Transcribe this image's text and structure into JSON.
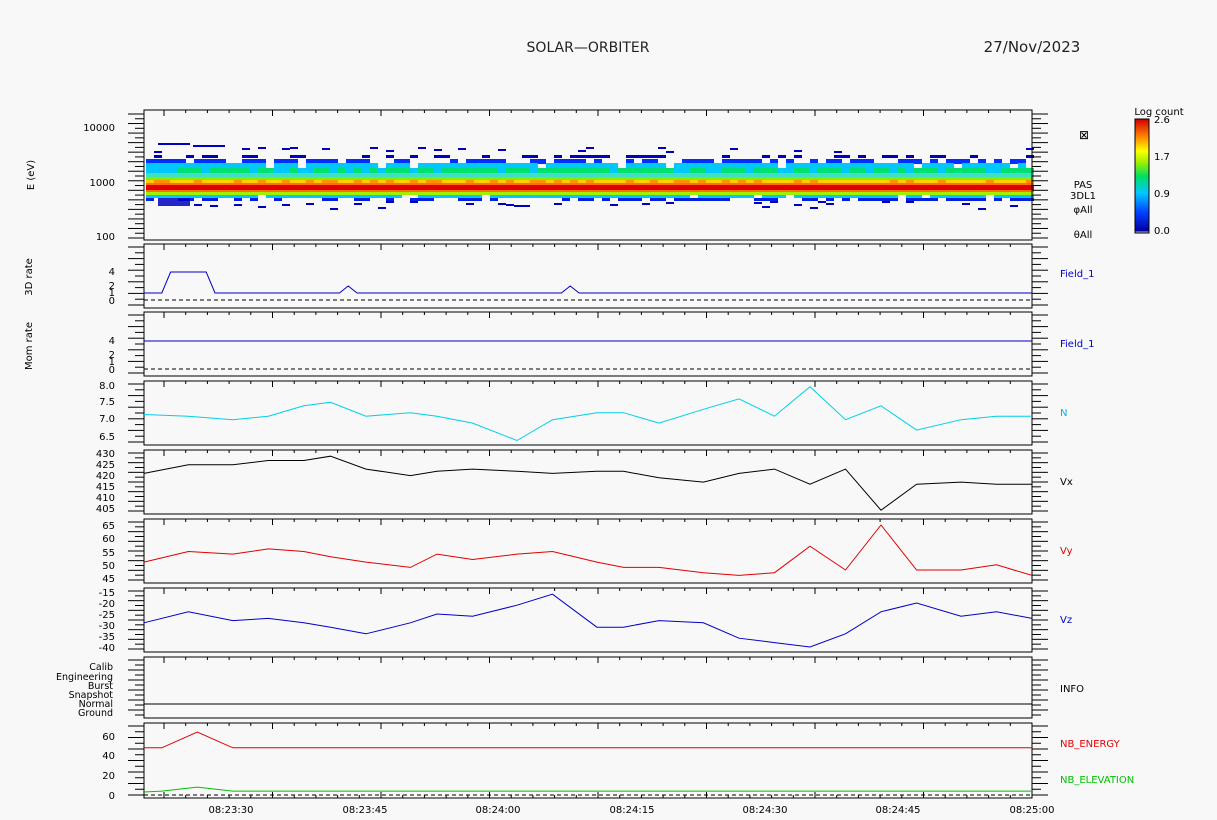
{
  "header": {
    "title": "SOLAR—ORBITER",
    "date": "27/Nov/2023"
  },
  "colorbar": {
    "title": "Log count",
    "ticks": [
      "2.6",
      "1.7",
      "0.9",
      "0.0"
    ]
  },
  "x_ticks": [
    "08:23:30",
    "08:23:45",
    "08:24:00",
    "08:24:15",
    "08:24:30",
    "08:24:45",
    "08:25:00"
  ],
  "chart_data": [
    {
      "id": "energy",
      "type": "heatmap",
      "ylabel": "E (eV)",
      "yticks": [
        "10000",
        "1000",
        "100"
      ],
      "right_labels": [
        "PAS",
        "3DL1",
        "φAll",
        "θAll"
      ],
      "note": "Energy spectrogram; peak counts near 1000 eV"
    },
    {
      "id": "rate3d",
      "type": "line",
      "ylabel": "3D rate",
      "yticks": [
        "4",
        "2",
        "1",
        "0"
      ],
      "series": [
        {
          "name": "Field_1",
          "color": "#0000c8",
          "x": [
            0,
            1,
            2,
            3,
            4,
            5,
            6,
            7,
            8,
            9,
            10,
            11,
            12,
            13,
            14,
            15,
            16,
            17,
            18,
            19,
            20,
            21,
            22,
            23,
            24,
            25,
            26,
            27,
            28,
            29,
            30,
            31,
            32,
            33,
            34,
            35,
            36,
            37,
            38,
            39,
            40,
            41,
            42,
            43,
            44,
            45,
            46,
            47,
            48,
            49,
            50,
            51,
            52,
            53,
            54,
            55,
            56,
            57,
            58,
            59,
            60,
            61,
            62,
            63,
            64,
            65,
            66,
            67,
            68,
            69,
            70,
            71,
            72,
            73,
            74,
            75,
            76,
            77,
            78,
            79,
            80,
            81,
            82,
            83,
            84,
            85,
            86,
            87,
            88,
            89,
            90,
            91,
            92,
            93,
            94,
            95,
            96,
            97,
            98,
            99,
            100
          ],
          "y": [
            1,
            1,
            1,
            4,
            4,
            4,
            4,
            4,
            1,
            1,
            1,
            1,
            1,
            1,
            1,
            1,
            1,
            1,
            1,
            1,
            1,
            1,
            1,
            2,
            1,
            1,
            1,
            1,
            1,
            1,
            1,
            1,
            1,
            1,
            1,
            1,
            1,
            1,
            1,
            1,
            1,
            1,
            1,
            1,
            1,
            1,
            1,
            1,
            2,
            1,
            1,
            1,
            1,
            1,
            1,
            1,
            1,
            1,
            1,
            1,
            1,
            1,
            1,
            1,
            1,
            1,
            1,
            1,
            1,
            1,
            1,
            1,
            1,
            1,
            1,
            1,
            1,
            1,
            1,
            1,
            1,
            1,
            1,
            1,
            1,
            1,
            1,
            1,
            1,
            1,
            1,
            1,
            1,
            1,
            1,
            1,
            1,
            1,
            1,
            1,
            1
          ]
        }
      ],
      "note": "Dashed zero line"
    },
    {
      "id": "momrate",
      "type": "line",
      "ylabel": "Mom rate",
      "yticks": [
        "4",
        "2",
        "1",
        "0"
      ],
      "series": [
        {
          "name": "Field_1",
          "color": "#0000c8",
          "x": [
            0,
            100
          ],
          "y": [
            4,
            4
          ]
        }
      ]
    },
    {
      "id": "density",
      "type": "line",
      "ylabel": "",
      "yticks": [
        "8.0",
        "7.5",
        "7.0",
        "6.5"
      ],
      "series": [
        {
          "name": "N",
          "color": "#00d0e8",
          "x": [
            0,
            5,
            10,
            14,
            18,
            21,
            25,
            30,
            33,
            37,
            42,
            46,
            51,
            54,
            58,
            63,
            67,
            71,
            75,
            79,
            83,
            87,
            92,
            96,
            100
          ],
          "y": [
            7.15,
            7.1,
            7.0,
            7.1,
            7.4,
            7.5,
            7.1,
            7.2,
            7.1,
            6.9,
            6.4,
            7.0,
            7.2,
            7.2,
            6.9,
            7.3,
            7.6,
            7.1,
            7.95,
            7.0,
            7.4,
            6.7,
            7.0,
            7.1,
            7.1
          ]
        }
      ]
    },
    {
      "id": "vx",
      "type": "line",
      "ylabel": "",
      "yticks": [
        "430",
        "425",
        "420",
        "415",
        "410",
        "405"
      ],
      "series": [
        {
          "name": "Vx",
          "color": "#000000",
          "x": [
            0,
            5,
            10,
            14,
            18,
            21,
            25,
            30,
            33,
            37,
            42,
            46,
            51,
            54,
            58,
            63,
            67,
            71,
            75,
            79,
            83,
            87,
            92,
            96,
            100
          ],
          "y": [
            421,
            425,
            425,
            427,
            427,
            429,
            423,
            420,
            422,
            423,
            422,
            421,
            422,
            422,
            419,
            417,
            421,
            423,
            416,
            423,
            404,
            416,
            417,
            416,
            416
          ]
        }
      ]
    },
    {
      "id": "vy",
      "type": "line",
      "ylabel": "",
      "yticks": [
        "65",
        "60",
        "55",
        "50",
        "45"
      ],
      "series": [
        {
          "name": "Vy",
          "color": "#e00000",
          "x": [
            0,
            5,
            10,
            14,
            18,
            21,
            25,
            30,
            33,
            37,
            42,
            46,
            51,
            54,
            58,
            63,
            67,
            71,
            75,
            79,
            83,
            87,
            92,
            96,
            100
          ],
          "y": [
            51,
            55,
            54,
            56,
            55,
            53,
            51,
            49,
            54,
            52,
            54,
            55,
            51,
            49,
            49,
            47,
            46,
            47,
            57,
            48,
            65,
            48,
            48,
            50,
            46
          ]
        }
      ]
    },
    {
      "id": "vz",
      "type": "line",
      "ylabel": "",
      "yticks": [
        "-15",
        "-20",
        "-25",
        "-30",
        "-35",
        "-40"
      ],
      "series": [
        {
          "name": "Vz",
          "color": "#0000c8",
          "x": [
            0,
            5,
            10,
            14,
            18,
            21,
            25,
            30,
            33,
            37,
            42,
            46,
            51,
            54,
            58,
            63,
            67,
            71,
            75,
            79,
            83,
            87,
            92,
            96,
            100
          ],
          "y": [
            -29,
            -24,
            -28,
            -27,
            -29,
            -31,
            -34,
            -29,
            -25,
            -26,
            -21,
            -16,
            -31,
            -31,
            -28,
            -29,
            -36,
            -38,
            -40,
            -34,
            -24,
            -20,
            -26,
            -24,
            -27
          ]
        }
      ]
    },
    {
      "id": "mode",
      "type": "line",
      "ylabel": "",
      "yticks": [
        "Calib",
        "Engineering",
        "Burst",
        "Snapshot",
        "Normal",
        "Ground"
      ],
      "right_labels": [
        "INFO"
      ],
      "series": [
        {
          "name": "INFO",
          "color": "#000000",
          "x": [
            0,
            100
          ],
          "y": [
            1,
            1
          ]
        }
      ]
    },
    {
      "id": "nb",
      "type": "line",
      "ylabel": "",
      "yticks": [
        "60",
        "40",
        "20",
        "0"
      ],
      "series": [
        {
          "name": "NB_ENERGY",
          "color": "#e00000",
          "x": [
            0,
            2,
            6,
            10,
            100
          ],
          "y": [
            48,
            48,
            64,
            48,
            48
          ]
        },
        {
          "name": "NB_ELEVATION",
          "color": "#00c000",
          "x": [
            0,
            2,
            6,
            10,
            100
          ],
          "y": [
            3,
            4,
            8,
            4,
            4
          ]
        }
      ]
    }
  ]
}
